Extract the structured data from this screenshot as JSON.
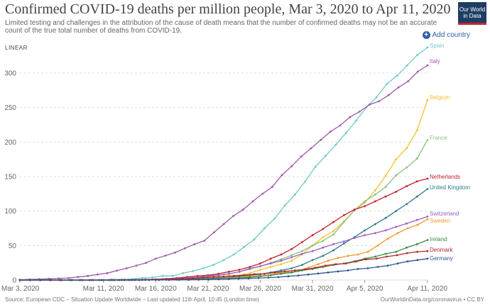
{
  "header": {
    "title": "Confirmed COVID-19 deaths per million people, Mar 3, 2020 to Apr 11, 2020",
    "subtitle": "Limited testing and challenges in the attribution of the cause of death means that the number of confirmed deaths may not be an accurate count of the true total number of deaths from COVID-19.",
    "logo_line1": "Our World",
    "logo_line2": "in Data",
    "scale_label": "LINEAR",
    "add_country_label": "Add country"
  },
  "footer": {
    "source": "Source: European CDC – Situation Update Worldwide – Last updated 11th April, 10:45 (London time)",
    "url": "OurWorldinData.org/coronavirus • CC BY"
  },
  "chart_data": {
    "type": "line",
    "title": "Confirmed COVID-19 deaths per million people, Mar 3, 2020 to Apr 11, 2020",
    "xlabel": "",
    "ylabel": "",
    "x_start": "Mar 3, 2020",
    "x_end": "Apr 11, 2020",
    "xticks": [
      "Mar 3, 2020",
      "Mar 11, 2020",
      "Mar 16, 2020",
      "Mar 21, 2020",
      "Mar 26, 2020",
      "Mar 31, 2020",
      "Apr 5, 2020",
      "Apr 11, 2020"
    ],
    "xtick_days": [
      0,
      8,
      13,
      18,
      23,
      28,
      33,
      39
    ],
    "yticks": [
      0,
      50,
      100,
      150,
      200,
      250,
      300
    ],
    "ylim": [
      0,
      340
    ],
    "grid": true,
    "series": [
      {
        "name": "Spain",
        "color": "#6fc9c9",
        "values": [
          0,
          0,
          0,
          0,
          0,
          0,
          0,
          0,
          0.1,
          1,
          1,
          1.5,
          3,
          4,
          6,
          6,
          10,
          13,
          17,
          22,
          29,
          37,
          48,
          59,
          75,
          89,
          108,
          124,
          143,
          164,
          180,
          196,
          213,
          231,
          250,
          265,
          284,
          296,
          311,
          326,
          337
        ]
      },
      {
        "name": "Italy",
        "color": "#a05aa7",
        "values": [
          0.5,
          1,
          1.3,
          1.9,
          2.5,
          3,
          4.4,
          6,
          8.1,
          10,
          13.8,
          17,
          21,
          25,
          31,
          35.4,
          40,
          46,
          52,
          57,
          69,
          81,
          93,
          102,
          114,
          125,
          135,
          152,
          165,
          179,
          191,
          203,
          215,
          224,
          236,
          244,
          254,
          259,
          268,
          279,
          288,
          302,
          311
        ]
      },
      {
        "name": "Belgium",
        "color": "#f4c12e",
        "values": [
          0,
          0,
          0,
          0,
          0,
          0,
          0,
          0,
          0,
          0,
          0.1,
          0.3,
          0.4,
          0.5,
          0.7,
          0.9,
          1.3,
          1.9,
          3,
          4,
          6,
          7,
          10,
          15,
          19,
          23,
          28,
          37,
          50,
          62,
          71,
          85,
          101,
          112,
          130,
          151,
          175,
          191,
          217,
          261
        ]
      },
      {
        "name": "France",
        "color": "#8dbf82",
        "values": [
          0,
          0,
          0,
          0,
          0,
          0,
          0,
          0,
          0.1,
          0.2,
          0.5,
          0.7,
          1,
          1.2,
          1.9,
          2.2,
          2.8,
          3.5,
          5,
          7,
          9,
          12,
          17,
          20,
          25,
          30,
          36,
          42,
          50,
          57,
          66,
          84,
          101,
          114,
          124,
          135,
          152,
          163,
          176,
          203
        ]
      },
      {
        "name": "Netherlands",
        "color": "#c4202b",
        "values": [
          0,
          0,
          0,
          0,
          0,
          0,
          0,
          0,
          0,
          0,
          0.1,
          0.3,
          0.6,
          1.1,
          2,
          3,
          4.4,
          6,
          7,
          9,
          12,
          15,
          19,
          24,
          31,
          37,
          45,
          55,
          65,
          74,
          84,
          94,
          102,
          107,
          114,
          121,
          128,
          136,
          143,
          147
        ]
      },
      {
        "name": "United Kingdom",
        "color": "#2d7a8a",
        "values": [
          0,
          0,
          0,
          0,
          0,
          0,
          0,
          0,
          0,
          0,
          0,
          0,
          0.1,
          0.3,
          0.5,
          0.8,
          1.1,
          1.6,
          2.2,
          2.9,
          3.8,
          5.2,
          6.9,
          8.4,
          11,
          14,
          17,
          22,
          29,
          35,
          43,
          53,
          62,
          72,
          81,
          90,
          100,
          110,
          121,
          132
        ]
      },
      {
        "name": "Switzerland",
        "color": "#9b5fc0",
        "values": [
          0,
          0,
          0,
          0,
          0,
          0,
          0,
          0,
          0,
          0.1,
          0.3,
          0.6,
          0.8,
          1.3,
          1.5,
          2,
          3,
          4,
          6,
          7,
          9,
          12,
          16,
          20,
          24,
          28,
          33,
          38,
          42,
          47,
          52,
          56,
          61,
          65,
          68,
          72,
          77,
          82,
          87,
          92
        ]
      },
      {
        "name": "Sweden",
        "color": "#f09a2f",
        "values": [
          0,
          0,
          0,
          0,
          0,
          0,
          0,
          0,
          0,
          0,
          0,
          0,
          0,
          0.1,
          0.2,
          0.5,
          0.7,
          0.8,
          1,
          1.5,
          2,
          2.8,
          3.5,
          5,
          6,
          7,
          10,
          11,
          13,
          18,
          23,
          28,
          32,
          35,
          37,
          41,
          50,
          60,
          68,
          75,
          80,
          88
        ]
      },
      {
        "name": "Ireland",
        "color": "#3c8d3e",
        "values": [
          0,
          0,
          0,
          0,
          0,
          0,
          0,
          0,
          0,
          0,
          0.2,
          0.3,
          0.4,
          0.5,
          0.6,
          0.6,
          0.8,
          1,
          1.3,
          1.6,
          2.1,
          3,
          4,
          5.5,
          7,
          9,
          11,
          14,
          16,
          19,
          22,
          24,
          27,
          31,
          34,
          38,
          41,
          47,
          52,
          58
        ]
      },
      {
        "name": "Denmark",
        "color": "#b0272a",
        "values": [
          0,
          0,
          0,
          0,
          0,
          0,
          0,
          0,
          0,
          0,
          0,
          0,
          0.2,
          0.7,
          1,
          1.2,
          2,
          2.6,
          3.5,
          4.3,
          5.2,
          6,
          7,
          8.5,
          9,
          11,
          12.5,
          14,
          15.5,
          18,
          21,
          23,
          24,
          27,
          30,
          31,
          34,
          36,
          39,
          41,
          42
        ]
      },
      {
        "name": "Germany",
        "color": "#2f5493",
        "values": [
          0,
          0,
          0,
          0,
          0,
          0,
          0,
          0,
          0,
          0,
          0,
          0,
          0,
          0.1,
          0.1,
          0.2,
          0.3,
          0.4,
          0.5,
          0.8,
          1,
          1.4,
          2,
          2.4,
          3,
          3.6,
          4.2,
          5.4,
          6.6,
          8,
          9.5,
          11,
          12.5,
          14,
          16,
          17,
          19,
          21,
          24,
          27,
          29,
          31
        ]
      }
    ]
  }
}
